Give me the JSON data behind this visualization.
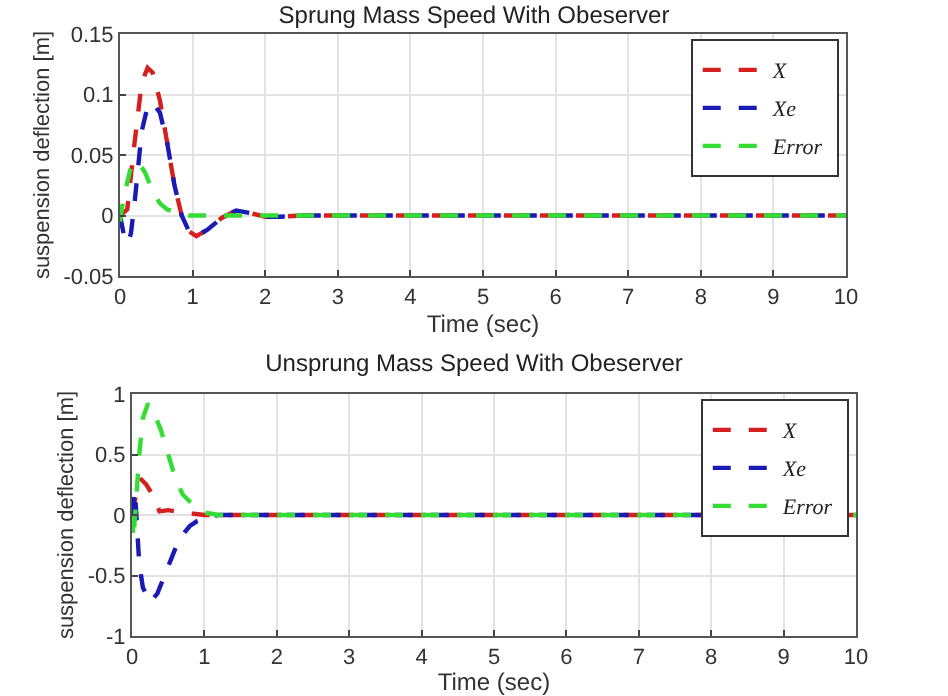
{
  "chart_data": [
    {
      "type": "line",
      "title": "Sprung Mass Speed With Obeserver",
      "xlabel": "Time (sec)",
      "ylabel": "suspension deflection [m]",
      "xlim": [
        0,
        10
      ],
      "xticks": [
        0,
        1,
        2,
        3,
        4,
        5,
        6,
        7,
        8,
        9,
        10
      ],
      "ylim": [
        -0.05,
        0.15
      ],
      "yticks": [
        -0.05,
        0,
        0.05,
        0.1,
        0.15
      ],
      "grid": true,
      "legend": "top right",
      "marker": "none",
      "series": [
        {
          "name": "X",
          "color": "#d62020",
          "line_style": "dashed",
          "x": [
            0,
            0.1,
            0.2,
            0.3,
            0.38,
            0.45,
            0.55,
            0.65,
            0.75,
            0.85,
            0.95,
            1.05,
            1.2,
            1.4,
            1.6,
            1.8,
            2.0,
            2.2,
            2.5,
            3,
            10
          ],
          "values": [
            0,
            0.005,
            0.06,
            0.11,
            0.122,
            0.118,
            0.095,
            0.06,
            0.025,
            0,
            -0.013,
            -0.017,
            -0.012,
            -0.002,
            0.004,
            0.002,
            -0.001,
            -0.001,
            0,
            0,
            0
          ]
        },
        {
          "name": "Xe",
          "color": "#1a1ab4",
          "line_style": "dashed",
          "x": [
            0,
            0.05,
            0.1,
            0.15,
            0.2,
            0.3,
            0.38,
            0.45,
            0.55,
            0.65,
            0.75,
            0.85,
            0.95,
            1.05,
            1.2,
            1.4,
            1.6,
            1.8,
            2.0,
            2.2,
            2.5,
            3,
            10
          ],
          "values": [
            0,
            -0.015,
            -0.023,
            -0.015,
            0.01,
            0.07,
            0.09,
            0.093,
            0.085,
            0.06,
            0.025,
            0,
            -0.013,
            -0.017,
            -0.012,
            -0.002,
            0.004,
            0.002,
            -0.001,
            -0.001,
            0,
            0,
            0
          ]
        },
        {
          "name": "Error",
          "color": "#33dd33",
          "line_style": "dashed",
          "x": [
            0,
            0.05,
            0.15,
            0.25,
            0.35,
            0.45,
            0.55,
            0.65,
            0.8,
            0.95,
            1.2,
            10
          ],
          "values": [
            -0.005,
            0.015,
            0.04,
            0.045,
            0.035,
            0.02,
            0.01,
            0.005,
            0.002,
            0,
            0,
            0
          ]
        }
      ]
    },
    {
      "type": "line",
      "title": "Unsprung Mass Speed With Obeserver",
      "xlabel": "Time (sec)",
      "ylabel": "suspension deflection [m]",
      "xlim": [
        0,
        10
      ],
      "xticks": [
        0,
        1,
        2,
        3,
        4,
        5,
        6,
        7,
        8,
        9,
        10
      ],
      "ylim": [
        -1,
        1
      ],
      "yticks": [
        -1,
        -0.5,
        0,
        0.5,
        1
      ],
      "grid": true,
      "legend": "top right",
      "marker": "none",
      "series": [
        {
          "name": "X",
          "color": "#d62020",
          "line_style": "dashed",
          "x": [
            0,
            0.05,
            0.12,
            0.2,
            0.3,
            0.38,
            0.5,
            0.6,
            0.7,
            0.85,
            1.0,
            1.2,
            10
          ],
          "values": [
            0,
            0.15,
            0.3,
            0.25,
            0.15,
            0.03,
            0.04,
            0.03,
            0.02,
            0.01,
            0,
            0,
            0
          ]
        },
        {
          "name": "Xe",
          "color": "#1a1ab4",
          "line_style": "dashed",
          "x": [
            0,
            0.04,
            0.1,
            0.15,
            0.25,
            0.35,
            0.45,
            0.55,
            0.65,
            0.8,
            0.9,
            1.05,
            1.2,
            10
          ],
          "values": [
            0,
            0.2,
            -0.4,
            -0.6,
            -0.72,
            -0.65,
            -0.5,
            -0.35,
            -0.2,
            -0.09,
            -0.05,
            -0.015,
            0,
            0
          ]
        },
        {
          "name": "Error",
          "color": "#33dd33",
          "line_style": "dashed",
          "x": [
            0,
            0.02,
            0.1,
            0.15,
            0.22,
            0.3,
            0.4,
            0.5,
            0.6,
            0.7,
            0.85,
            1.0,
            1.2,
            10
          ],
          "values": [
            0,
            -0.2,
            0.5,
            0.8,
            0.92,
            0.85,
            0.7,
            0.5,
            0.3,
            0.17,
            0.08,
            0.02,
            0,
            0
          ]
        }
      ]
    }
  ]
}
